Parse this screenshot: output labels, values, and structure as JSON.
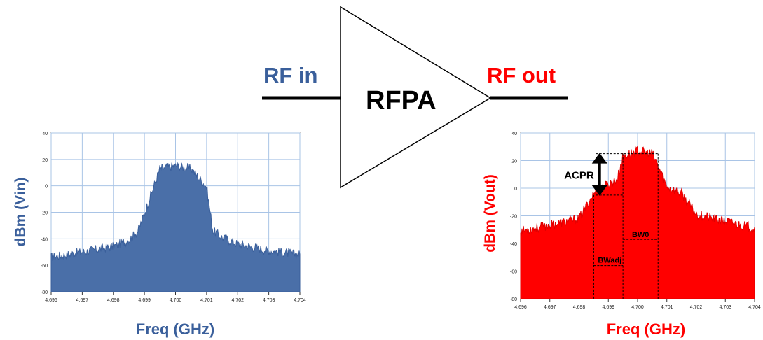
{
  "amplifier": {
    "label": "RFPA",
    "input_label": "RF in",
    "output_label": "RF out"
  },
  "colors": {
    "input": "#3a5f9b",
    "input_fill": "#4a6fa8",
    "output": "#ff0000",
    "line": "#000000",
    "grid": "#a9c4e6"
  },
  "chart_data": [
    {
      "type": "area",
      "series": "input spectrum",
      "xlabel": "Freq (GHz)",
      "ylabel": "dBm (Vin)",
      "xlim": [
        4.696,
        4.704
      ],
      "ylim": [
        -80,
        40
      ],
      "xticks": [
        "4.696",
        "4.697",
        "4.698",
        "4.699",
        "4.700",
        "4.701",
        "4.702",
        "4.703",
        "4.704"
      ],
      "yticks": [
        "-80",
        "-60",
        "-40",
        "-20",
        "0",
        "20",
        "40"
      ],
      "x": [
        4.696,
        4.697,
        4.698,
        4.6985,
        4.6988,
        4.699,
        4.6995,
        4.7,
        4.7005,
        4.701,
        4.7012,
        4.7015,
        4.702,
        4.703,
        4.704
      ],
      "y": [
        -55,
        -51,
        -47,
        -42,
        -35,
        -22,
        12,
        14,
        12,
        -2,
        -35,
        -40,
        -45,
        -50,
        -53
      ]
    },
    {
      "type": "area",
      "series": "output spectrum",
      "xlabel": "Freq (GHz)",
      "ylabel": "dBm (Vout)",
      "xlim": [
        4.696,
        4.704
      ],
      "ylim": [
        -80,
        40
      ],
      "xticks": [
        "4.696",
        "4.697",
        "4.698",
        "4.699",
        "4.700",
        "4.701",
        "4.702",
        "4.703",
        "4.704"
      ],
      "yticks": [
        "-80",
        "-60",
        "-40",
        "-20",
        "0",
        "20",
        "40"
      ],
      "x": [
        4.696,
        4.697,
        4.698,
        4.6985,
        4.699,
        4.6993,
        4.6995,
        4.7,
        4.7005,
        4.7007,
        4.701,
        4.7015,
        4.702,
        4.703,
        4.704
      ],
      "y": [
        -32,
        -28,
        -23,
        -5,
        2,
        5,
        22,
        26,
        24,
        15,
        0,
        -5,
        -20,
        -25,
        -30
      ],
      "annotations": [
        {
          "text": "ACPR",
          "type": "double-arrow",
          "y_from": 25,
          "y_to": -5,
          "x": 4.6987
        },
        {
          "text": "BW0",
          "type": "bandwidth",
          "x_from": 4.6995,
          "x_to": 4.7007,
          "y": -37
        },
        {
          "text": "BWadj",
          "type": "bandwidth",
          "x_from": 4.6985,
          "x_to": 4.6995,
          "y": -56
        }
      ]
    }
  ]
}
